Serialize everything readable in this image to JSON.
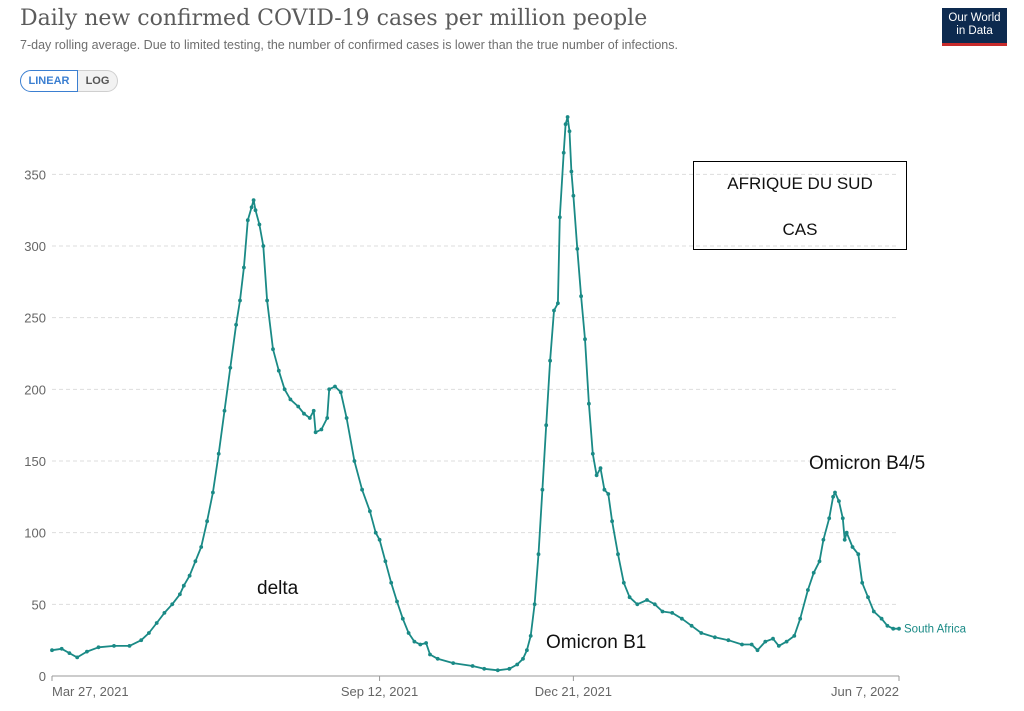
{
  "header": {
    "title": "Daily new confirmed COVID-19 cases per million people",
    "subtitle": "7-day rolling average. Due to limited testing, the number of confirmed cases is lower than the true number of infections.",
    "logo_line1": "Our World",
    "logo_line2": "in Data"
  },
  "controls": {
    "linear_label": "LINEAR",
    "log_label": "LOG",
    "selected": "LINEAR"
  },
  "annotations": {
    "box_line1": "AFRIQUE DU SUD",
    "box_line2": "CAS",
    "delta": "delta",
    "omicron_b1": "Omicron B1",
    "omicron_b45": "Omicron B4/5"
  },
  "colors": {
    "series": "#1a8a86",
    "grid": "#dddddd",
    "axis_text": "#666666"
  },
  "chart_data": {
    "type": "line",
    "title": "Daily new confirmed COVID-19 cases per million people",
    "subtitle": "7-day rolling average. Due to limited testing, the number of confirmed cases is lower than the true number of infections.",
    "xlabel": "",
    "ylabel": "",
    "x_range": [
      "2021-03-27",
      "2022-06-07"
    ],
    "ylim": [
      0,
      390
    ],
    "y_ticks": [
      0,
      50,
      100,
      150,
      200,
      250,
      300,
      350
    ],
    "x_ticks": [
      {
        "date": "2021-03-27",
        "label": "Mar 27, 2021"
      },
      {
        "date": "2021-09-12",
        "label": "Sep 12, 2021"
      },
      {
        "date": "2021-12-21",
        "label": "Dec 21, 2021"
      },
      {
        "date": "2022-06-07",
        "label": "Jun 7, 2022"
      }
    ],
    "grid": true,
    "series": [
      {
        "name": "South Africa",
        "points": [
          [
            "2021-03-27",
            18
          ],
          [
            "2021-04-01",
            19
          ],
          [
            "2021-04-05",
            16
          ],
          [
            "2021-04-09",
            13
          ],
          [
            "2021-04-14",
            17
          ],
          [
            "2021-04-20",
            20
          ],
          [
            "2021-04-28",
            21
          ],
          [
            "2021-05-06",
            21
          ],
          [
            "2021-05-12",
            25
          ],
          [
            "2021-05-16",
            30
          ],
          [
            "2021-05-20",
            37
          ],
          [
            "2021-05-24",
            44
          ],
          [
            "2021-05-28",
            50
          ],
          [
            "2021-06-01",
            57
          ],
          [
            "2021-06-03",
            63
          ],
          [
            "2021-06-06",
            70
          ],
          [
            "2021-06-09",
            80
          ],
          [
            "2021-06-12",
            90
          ],
          [
            "2021-06-15",
            108
          ],
          [
            "2021-06-18",
            128
          ],
          [
            "2021-06-21",
            155
          ],
          [
            "2021-06-24",
            185
          ],
          [
            "2021-06-27",
            215
          ],
          [
            "2021-06-30",
            245
          ],
          [
            "2021-07-02",
            262
          ],
          [
            "2021-07-04",
            285
          ],
          [
            "2021-07-06",
            318
          ],
          [
            "2021-07-08",
            327
          ],
          [
            "2021-07-09",
            332
          ],
          [
            "2021-07-10",
            325
          ],
          [
            "2021-07-12",
            315
          ],
          [
            "2021-07-14",
            300
          ],
          [
            "2021-07-16",
            262
          ],
          [
            "2021-07-19",
            228
          ],
          [
            "2021-07-22",
            213
          ],
          [
            "2021-07-25",
            200
          ],
          [
            "2021-07-28",
            193
          ],
          [
            "2021-08-01",
            188
          ],
          [
            "2021-08-04",
            183
          ],
          [
            "2021-08-07",
            180
          ],
          [
            "2021-08-09",
            185
          ],
          [
            "2021-08-10",
            170
          ],
          [
            "2021-08-13",
            172
          ],
          [
            "2021-08-16",
            180
          ],
          [
            "2021-08-17",
            200
          ],
          [
            "2021-08-20",
            202
          ],
          [
            "2021-08-23",
            198
          ],
          [
            "2021-08-26",
            180
          ],
          [
            "2021-08-30",
            150
          ],
          [
            "2021-09-03",
            130
          ],
          [
            "2021-09-07",
            115
          ],
          [
            "2021-09-10",
            100
          ],
          [
            "2021-09-12",
            95
          ],
          [
            "2021-09-15",
            80
          ],
          [
            "2021-09-18",
            65
          ],
          [
            "2021-09-21",
            52
          ],
          [
            "2021-09-24",
            40
          ],
          [
            "2021-09-27",
            30
          ],
          [
            "2021-09-30",
            24
          ],
          [
            "2021-10-03",
            22
          ],
          [
            "2021-10-06",
            23
          ],
          [
            "2021-10-08",
            15
          ],
          [
            "2021-10-12",
            12
          ],
          [
            "2021-10-20",
            9
          ],
          [
            "2021-10-30",
            7
          ],
          [
            "2021-11-05",
            5
          ],
          [
            "2021-11-12",
            4
          ],
          [
            "2021-11-18",
            5
          ],
          [
            "2021-11-22",
            8
          ],
          [
            "2021-11-25",
            12
          ],
          [
            "2021-11-27",
            18
          ],
          [
            "2021-11-29",
            28
          ],
          [
            "2021-12-01",
            50
          ],
          [
            "2021-12-03",
            85
          ],
          [
            "2021-12-05",
            130
          ],
          [
            "2021-12-07",
            175
          ],
          [
            "2021-12-09",
            220
          ],
          [
            "2021-12-11",
            255
          ],
          [
            "2021-12-13",
            260
          ],
          [
            "2021-12-14",
            320
          ],
          [
            "2021-12-16",
            365
          ],
          [
            "2021-12-17",
            385
          ],
          [
            "2021-12-18",
            390
          ],
          [
            "2021-12-19",
            380
          ],
          [
            "2021-12-20",
            352
          ],
          [
            "2021-12-21",
            335
          ],
          [
            "2021-12-23",
            298
          ],
          [
            "2021-12-25",
            265
          ],
          [
            "2021-12-27",
            235
          ],
          [
            "2021-12-29",
            190
          ],
          [
            "2021-12-31",
            155
          ],
          [
            "2022-01-02",
            140
          ],
          [
            "2022-01-04",
            145
          ],
          [
            "2022-01-06",
            130
          ],
          [
            "2022-01-08",
            127
          ],
          [
            "2022-01-10",
            108
          ],
          [
            "2022-01-13",
            85
          ],
          [
            "2022-01-16",
            65
          ],
          [
            "2022-01-19",
            55
          ],
          [
            "2022-01-23",
            50
          ],
          [
            "2022-01-28",
            53
          ],
          [
            "2022-02-01",
            50
          ],
          [
            "2022-02-05",
            45
          ],
          [
            "2022-02-10",
            44
          ],
          [
            "2022-02-15",
            40
          ],
          [
            "2022-02-20",
            35
          ],
          [
            "2022-02-25",
            30
          ],
          [
            "2022-03-04",
            27
          ],
          [
            "2022-03-11",
            25
          ],
          [
            "2022-03-18",
            22
          ],
          [
            "2022-03-23",
            22
          ],
          [
            "2022-03-26",
            18
          ],
          [
            "2022-03-30",
            24
          ],
          [
            "2022-04-03",
            26
          ],
          [
            "2022-04-06",
            21
          ],
          [
            "2022-04-10",
            24
          ],
          [
            "2022-04-14",
            28
          ],
          [
            "2022-04-17",
            40
          ],
          [
            "2022-04-21",
            60
          ],
          [
            "2022-04-24",
            72
          ],
          [
            "2022-04-27",
            80
          ],
          [
            "2022-04-29",
            95
          ],
          [
            "2022-05-02",
            110
          ],
          [
            "2022-05-04",
            125
          ],
          [
            "2022-05-05",
            128
          ],
          [
            "2022-05-07",
            122
          ],
          [
            "2022-05-09",
            110
          ],
          [
            "2022-05-10",
            95
          ],
          [
            "2022-05-11",
            100
          ],
          [
            "2022-05-14",
            90
          ],
          [
            "2022-05-17",
            85
          ],
          [
            "2022-05-19",
            65
          ],
          [
            "2022-05-22",
            55
          ],
          [
            "2022-05-25",
            45
          ],
          [
            "2022-05-29",
            40
          ],
          [
            "2022-06-01",
            35
          ],
          [
            "2022-06-04",
            33
          ],
          [
            "2022-06-07",
            33
          ]
        ]
      }
    ]
  }
}
